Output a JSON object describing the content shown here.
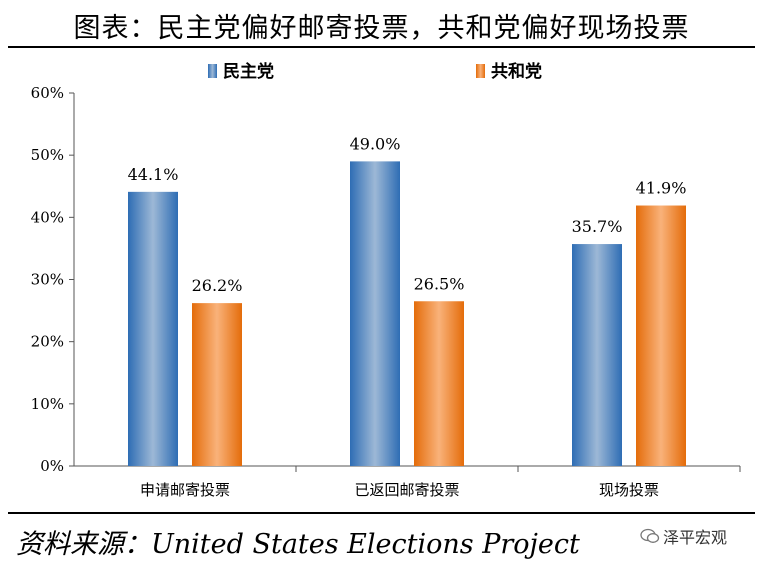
{
  "title": "图表：民主党偏好邮寄投票，共和党偏好现场投票",
  "source": "资料来源：United States Elections Project",
  "watermark": "泽平宏观",
  "colors": {
    "democrat": "#2E6DB4",
    "democrat_light": "#9DB8D6",
    "republican": "#E46C0A",
    "republican_light": "#F9B27A",
    "axis": "#555555"
  },
  "chart_data": {
    "type": "bar",
    "categories": [
      "申请邮寄投票",
      "已返回邮寄投票",
      "现场投票"
    ],
    "series": [
      {
        "name": "民主党",
        "values": [
          44.1,
          49.0,
          35.7
        ],
        "labels": [
          "44.1%",
          "49.0%",
          "35.7%"
        ]
      },
      {
        "name": "共和党",
        "values": [
          26.2,
          26.5,
          41.9
        ],
        "labels": [
          "26.2%",
          "26.5%",
          "41.9%"
        ]
      }
    ],
    "yticks": [
      "0%",
      "10%",
      "20%",
      "30%",
      "40%",
      "50%",
      "60%"
    ],
    "ylim": [
      0,
      60
    ],
    "legend_position": "top",
    "grid": false
  }
}
